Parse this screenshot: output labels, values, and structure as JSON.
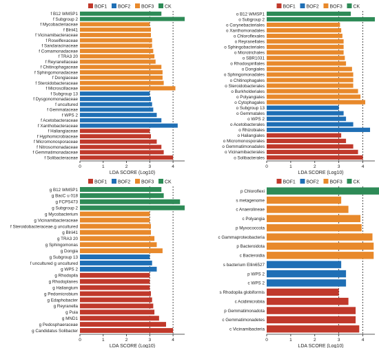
{
  "colors": {
    "BOF1": "#c0392b",
    "BOF2": "#1f6fb5",
    "BOF3": "#e8892b",
    "CK": "#2e8b57"
  },
  "chart_data": [
    {
      "type": "bar",
      "orientation": "horizontal",
      "legend": {
        "placement": "top",
        "entries": [
          "BOF1",
          "BOF2",
          "BOF3",
          "CK"
        ]
      },
      "xlabel": "LDA SCORE (Log10)",
      "xlim": [
        0,
        4.5
      ],
      "xticks": [
        0,
        1,
        2,
        3,
        4
      ],
      "grid": "dashed vertical lines at 3 and 4",
      "bars": [
        {
          "label": "f B12 WMSP1",
          "value": 3.5,
          "group": "CK"
        },
        {
          "label": "f Subgroup 2",
          "value": 4.5,
          "group": "CK"
        },
        {
          "label": "f Mycobacteriaceae",
          "value": 3.0,
          "group": "BOF3"
        },
        {
          "label": "f Blrii41",
          "value": 3.05,
          "group": "BOF3"
        },
        {
          "label": "f Vicinamibacteraceae",
          "value": 3.05,
          "group": "BOF3"
        },
        {
          "label": "f Roseiflexaceae",
          "value": 3.1,
          "group": "BOF3"
        },
        {
          "label": "f Sandaracinaceae",
          "value": 3.1,
          "group": "BOF3"
        },
        {
          "label": "f Comamonadaceae",
          "value": 3.15,
          "group": "BOF3"
        },
        {
          "label": "f TRA3 20",
          "value": 3.2,
          "group": "BOF3"
        },
        {
          "label": "f Reyranellaceae",
          "value": 3.25,
          "group": "BOF3"
        },
        {
          "label": "f Chitinophagaceae",
          "value": 3.5,
          "group": "BOF3"
        },
        {
          "label": "f Sphingomonadaceae",
          "value": 3.55,
          "group": "BOF3"
        },
        {
          "label": "f Dongiaceae",
          "value": 3.55,
          "group": "BOF3"
        },
        {
          "label": "f Steroidobacteraceae",
          "value": 3.6,
          "group": "BOF3"
        },
        {
          "label": "f Microscillaceae",
          "value": 4.1,
          "group": "BOF3"
        },
        {
          "label": "f Subgroup 13",
          "value": 3.0,
          "group": "BOF2"
        },
        {
          "label": "f Dysgonomonadaceae",
          "value": 3.05,
          "group": "BOF2"
        },
        {
          "label": "f uncultured",
          "value": 3.1,
          "group": "BOF2"
        },
        {
          "label": "f Gemmataceae",
          "value": 3.15,
          "group": "BOF2"
        },
        {
          "label": "f WPS 2",
          "value": 3.3,
          "group": "BOF2"
        },
        {
          "label": "f Acetobacteraceae",
          "value": 3.5,
          "group": "BOF2"
        },
        {
          "label": "f Xanthobacteraceae",
          "value": 4.2,
          "group": "BOF2"
        },
        {
          "label": "f Haliangiaceae",
          "value": 3.0,
          "group": "BOF1"
        },
        {
          "label": "f Hyphomicrobiaceae",
          "value": 3.05,
          "group": "BOF1"
        },
        {
          "label": "f Micromonosporaceae",
          "value": 3.3,
          "group": "BOF1"
        },
        {
          "label": "f Nitrosomonadaceae",
          "value": 3.5,
          "group": "BOF1"
        },
        {
          "label": "f Gemmatimonadaceae",
          "value": 3.6,
          "group": "BOF1"
        },
        {
          "label": "f Solibacteraceae",
          "value": 4.0,
          "group": "BOF1"
        }
      ]
    },
    {
      "type": "bar",
      "orientation": "horizontal",
      "legend": {
        "placement": "top",
        "entries": [
          "BOF1",
          "BOF2",
          "BOF3",
          "CK"
        ]
      },
      "xlabel": "LDA SCORE (Log10)",
      "xlim": [
        0,
        4.5
      ],
      "xticks": [
        0,
        1,
        2,
        3,
        4
      ],
      "grid": "dashed vertical lines at 3 and 4",
      "bars": [
        {
          "label": "o B12 WMSP1",
          "value": 3.5,
          "group": "CK"
        },
        {
          "label": "o Subgroup 2",
          "value": 4.5,
          "group": "CK"
        },
        {
          "label": "o Corynebacteriales",
          "value": 3.05,
          "group": "BOF3"
        },
        {
          "label": "o Xanthomonadales",
          "value": 3.1,
          "group": "BOF3"
        },
        {
          "label": "o Chloroflexales",
          "value": 3.15,
          "group": "BOF3"
        },
        {
          "label": "o Reyranellales",
          "value": 3.2,
          "group": "BOF3"
        },
        {
          "label": "o Sphingobacteriales",
          "value": 3.2,
          "group": "BOF3"
        },
        {
          "label": "o Microtrichales",
          "value": 3.2,
          "group": "BOF3"
        },
        {
          "label": "o SBR1031",
          "value": 3.25,
          "group": "BOF3"
        },
        {
          "label": "o Rhodospirillales",
          "value": 3.3,
          "group": "BOF3"
        },
        {
          "label": "o Dongiales",
          "value": 3.55,
          "group": "BOF3"
        },
        {
          "label": "o Sphingomonadales",
          "value": 3.6,
          "group": "BOF3"
        },
        {
          "label": "o Chitinophagales",
          "value": 3.6,
          "group": "BOF3"
        },
        {
          "label": "o Steroidobacterales",
          "value": 3.6,
          "group": "BOF3"
        },
        {
          "label": "o Burkholderiales",
          "value": 3.8,
          "group": "BOF3"
        },
        {
          "label": "o Polyangiales",
          "value": 3.9,
          "group": "BOF3"
        },
        {
          "label": "o Cytophagales",
          "value": 4.1,
          "group": "BOF3"
        },
        {
          "label": "o Subgroup 13",
          "value": 3.0,
          "group": "BOF2"
        },
        {
          "label": "o Gemmatales",
          "value": 3.2,
          "group": "BOF2"
        },
        {
          "label": "o WPS 2",
          "value": 3.3,
          "group": "BOF2"
        },
        {
          "label": "o Acetobacterales",
          "value": 3.6,
          "group": "BOF2"
        },
        {
          "label": "o Rhizobiales",
          "value": 4.3,
          "group": "BOF2"
        },
        {
          "label": "o Haliangiales",
          "value": 3.1,
          "group": "BOF1"
        },
        {
          "label": "o Micromonosporales",
          "value": 3.3,
          "group": "BOF1"
        },
        {
          "label": "o Gemmatimonadales",
          "value": 3.6,
          "group": "BOF1"
        },
        {
          "label": "o Vicinamibacterales",
          "value": 3.8,
          "group": "BOF1"
        },
        {
          "label": "o Solibacterales",
          "value": 4.0,
          "group": "BOF1"
        }
      ]
    },
    {
      "type": "bar",
      "orientation": "horizontal",
      "legend": {
        "placement": "top",
        "entries": [
          "BOF1",
          "BOF2",
          "BOF3",
          "CK"
        ]
      },
      "xlabel": "LDA SCORE (Log10)",
      "xlim": [
        0,
        4.5
      ],
      "xticks": [
        0,
        1,
        2,
        3,
        4
      ],
      "grid": "dashed vertical lines at 3 and 4",
      "bars": [
        {
          "label": "g B12 WMSP1",
          "value": 3.5,
          "group": "CK"
        },
        {
          "label": "g BacC u 018",
          "value": 3.6,
          "group": "CK"
        },
        {
          "label": "g FCPS473",
          "value": 4.3,
          "group": "CK"
        },
        {
          "label": "g Subgroup 2",
          "value": 4.5,
          "group": "CK"
        },
        {
          "label": "g Mycobacterium",
          "value": 3.0,
          "group": "BOF3"
        },
        {
          "label": "g Vicinamibacteraceae",
          "value": 3.0,
          "group": "BOF3"
        },
        {
          "label": "f Steroidobacteraceae.g uncultured",
          "value": 3.05,
          "group": "BOF3"
        },
        {
          "label": "g Blrii41",
          "value": 3.05,
          "group": "BOF3"
        },
        {
          "label": "g TRA3 20",
          "value": 3.2,
          "group": "BOF3"
        },
        {
          "label": "g Sphingomonas",
          "value": 3.3,
          "group": "BOF3"
        },
        {
          "label": "g Dongia",
          "value": 3.55,
          "group": "BOF3"
        },
        {
          "label": "g Subgroup 13",
          "value": 3.0,
          "group": "BOF2"
        },
        {
          "label": "f uncultured g uncultured",
          "value": 3.1,
          "group": "BOF2"
        },
        {
          "label": "g WPS 2",
          "value": 3.3,
          "group": "BOF2"
        },
        {
          "label": "g Rhodopila",
          "value": 3.0,
          "group": "BOF1"
        },
        {
          "label": "g Rhodoplanes",
          "value": 3.0,
          "group": "BOF1"
        },
        {
          "label": "g Haliangium",
          "value": 3.0,
          "group": "BOF1"
        },
        {
          "label": "g Pedomicrobium",
          "value": 3.05,
          "group": "BOF1"
        },
        {
          "label": "g Edaphobacter",
          "value": 3.1,
          "group": "BOF1"
        },
        {
          "label": "g Reyranella",
          "value": 3.15,
          "group": "BOF1"
        },
        {
          "label": "g Puia",
          "value": 3.2,
          "group": "BOF1"
        },
        {
          "label": "g MND1",
          "value": 3.4,
          "group": "BOF1"
        },
        {
          "label": "g Pedosphaeraceae",
          "value": 3.7,
          "group": "BOF1"
        },
        {
          "label": "g Candidatus Solibacter",
          "value": 4.0,
          "group": "BOF1"
        }
      ]
    },
    {
      "type": "bar",
      "orientation": "horizontal",
      "legend": {
        "placement": "top",
        "entries": [
          "BOF1",
          "BOF2",
          "BOF3",
          "CK"
        ]
      },
      "xlabel": "LDA SCORE (Log10)",
      "xlim": [
        0,
        4.5
      ],
      "xticks": [
        0,
        1,
        2,
        3,
        4
      ],
      "grid": "dashed vertical lines at 3 and 4",
      "bars": [
        {
          "label": "p Chloroflexi",
          "value": 4.9,
          "group": "CK"
        },
        {
          "label": "s metagenome",
          "value": 3.1,
          "group": "BOF3"
        },
        {
          "label": "c Anaerolineae",
          "value": 3.4,
          "group": "BOF3"
        },
        {
          "label": "c Polyangia",
          "value": 3.9,
          "group": "BOF3"
        },
        {
          "label": "p Myxococcota",
          "value": 3.95,
          "group": "BOF3"
        },
        {
          "label": "c Gammaproteobacteria",
          "value": 4.4,
          "group": "BOF3"
        },
        {
          "label": "p Bacteroidota",
          "value": 4.45,
          "group": "BOF3"
        },
        {
          "label": "c Bacteroidia",
          "value": 4.45,
          "group": "BOF3"
        },
        {
          "label": "s bacterium Ellin6527",
          "value": 3.1,
          "group": "BOF2"
        },
        {
          "label": "p WPS 2",
          "value": 3.3,
          "group": "BOF2"
        },
        {
          "label": "c WPS 2",
          "value": 3.3,
          "group": "BOF2"
        },
        {
          "label": "s Rhodopila globiformis",
          "value": 3.0,
          "group": "BOF1"
        },
        {
          "label": "c Acidimicrobiia",
          "value": 3.4,
          "group": "BOF1"
        },
        {
          "label": "p Gemmatimonadota",
          "value": 3.7,
          "group": "BOF1"
        },
        {
          "label": "c Gemmatimonadetes",
          "value": 3.7,
          "group": "BOF1"
        },
        {
          "label": "c Vicinamibacteria",
          "value": 3.85,
          "group": "BOF1"
        }
      ]
    }
  ]
}
